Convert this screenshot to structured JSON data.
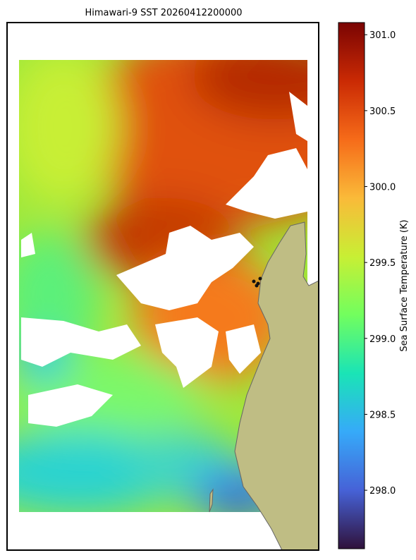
{
  "title": "Himawari-9 SST 20260412200000",
  "colorbar": {
    "label": "Sea Surface Temperature (K)",
    "lim": [
      297.615,
      301.08
    ],
    "ticks": [
      {
        "value": 298,
        "label": "298.0"
      },
      {
        "value": 298.5,
        "label": "298.5"
      },
      {
        "value": 299,
        "label": "299.0"
      },
      {
        "value": 299.5,
        "label": "299.5"
      },
      {
        "value": 300,
        "label": "300.0"
      },
      {
        "value": 300.5,
        "label": "300.5"
      },
      {
        "value": 301,
        "label": "301.0"
      }
    ],
    "colors": [
      "#30123b",
      "#4662d7",
      "#36aaf9",
      "#1ae4b6",
      "#72fe5e",
      "#c8ef34",
      "#faba39",
      "#f66b19",
      "#ca2a04",
      "#7a0403"
    ]
  }
}
